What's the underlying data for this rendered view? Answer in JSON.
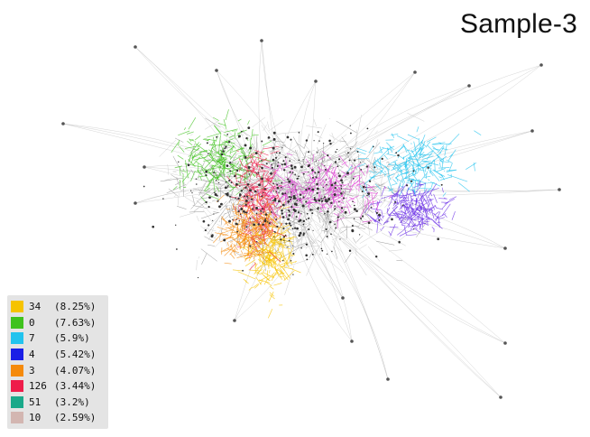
{
  "title": "Sample-3",
  "legend": [
    {
      "id": "34",
      "pct": "(8.25%)",
      "color": "#f6c300"
    },
    {
      "id": "0",
      "pct": "(7.63%)",
      "color": "#3fc21d"
    },
    {
      "id": "7",
      "pct": "(5.9%)",
      "color": "#22c3ee"
    },
    {
      "id": "4",
      "pct": "(5.42%)",
      "color": "#1a1ee6"
    },
    {
      "id": "3",
      "pct": "(4.07%)",
      "color": "#f58a0b"
    },
    {
      "id": "126",
      "pct": "(3.44%)",
      "color": "#ee1c4a"
    },
    {
      "id": "51",
      "pct": "(3.2%)",
      "color": "#1aa98a"
    },
    {
      "id": "10",
      "pct": "(2.59%)",
      "color": "#d3b6b1"
    }
  ],
  "clusters": [
    {
      "color": "#3fc21d",
      "spread": 1.0
    },
    {
      "color": "#22c3ee",
      "spread": 1.0
    },
    {
      "color": "#6a2ee6",
      "spread": 1.0
    },
    {
      "color": "#f6c300",
      "spread": 1.0
    },
    {
      "color": "#e23ad6",
      "spread": 1.0
    },
    {
      "color": "#ee1c4a",
      "spread": 1.0
    },
    {
      "color": "#f58a0b",
      "spread": 1.0
    }
  ]
}
